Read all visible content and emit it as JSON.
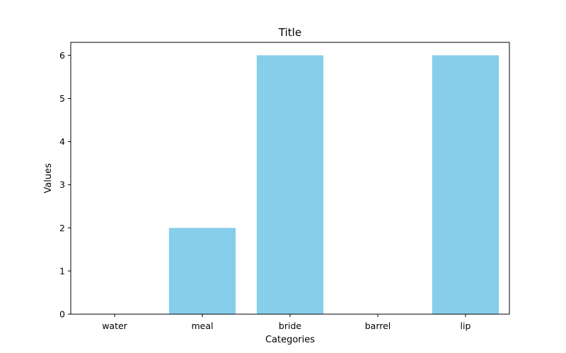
{
  "chart_data": {
    "type": "bar",
    "title": "Title",
    "xlabel": "Categories",
    "ylabel": "Values",
    "categories": [
      "water",
      "meal",
      "bride",
      "barrel",
      "lip"
    ],
    "values": [
      0,
      2,
      6,
      0,
      6
    ],
    "ylim": [
      0,
      6.3
    ],
    "yticks": [
      0,
      1,
      2,
      3,
      4,
      5,
      6
    ],
    "bar_color": "#87ceeb",
    "grid": false,
    "legend": "none"
  }
}
